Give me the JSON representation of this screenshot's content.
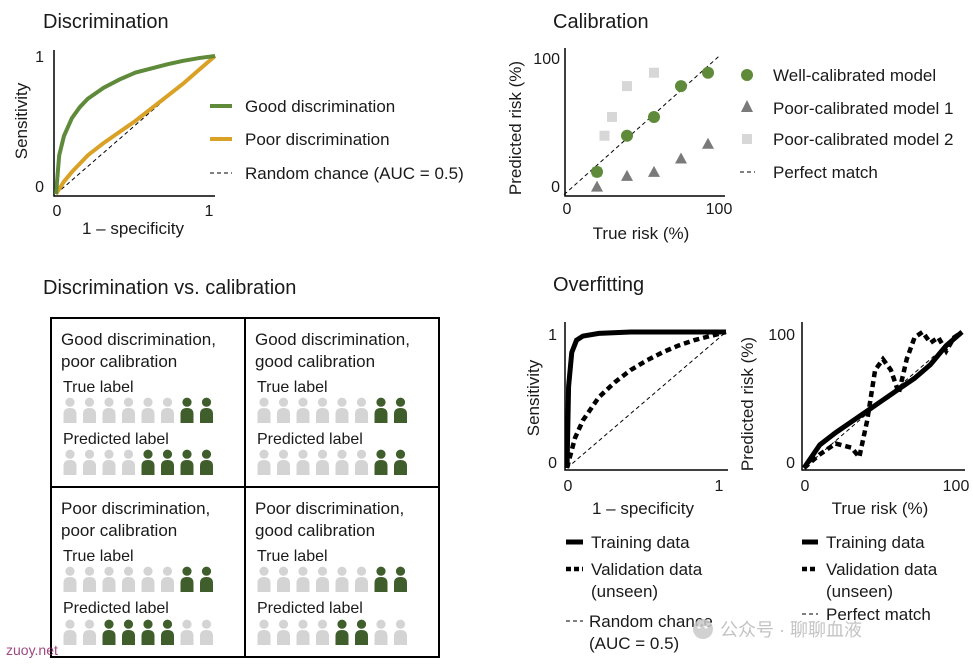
{
  "colors": {
    "green": "#5e8a3a",
    "gold": "#d9a227",
    "dark_green": "#3f5e2b",
    "gray_person": "#d4d4d4",
    "gray_marker": "#7a7a7a",
    "light_marker": "#d7d7d7"
  },
  "discrimination": {
    "title": "Discrimination",
    "xlabel": "1 – specificity",
    "ylabel": "Sensitivity",
    "x_ticks": [
      "0",
      "1"
    ],
    "y_ticks": [
      "0",
      "1"
    ],
    "legend": [
      "Good discrimination",
      "Poor discrimination",
      "Random chance (AUC = 0.5)"
    ]
  },
  "calibration": {
    "title": "Calibration",
    "xlabel": "True risk (%)",
    "ylabel": "Predicted risk (%)",
    "x_ticks": [
      "0",
      "100"
    ],
    "y_ticks": [
      "0",
      "100"
    ],
    "legend": [
      "Well-calibrated model",
      "Poor-calibrated model 1",
      "Poor-calibrated model 2",
      "Perfect match"
    ]
  },
  "chart_data": [
    {
      "type": "line",
      "title": "Discrimination",
      "xlabel": "1 – specificity",
      "ylabel": "Sensitivity",
      "xlim": [
        0,
        1
      ],
      "ylim": [
        0,
        1
      ],
      "series": [
        {
          "name": "Good discrimination",
          "x": [
            0,
            0.02,
            0.05,
            0.1,
            0.15,
            0.2,
            0.3,
            0.4,
            0.5,
            0.6,
            0.7,
            0.8,
            0.9,
            1
          ],
          "y": [
            0,
            0.28,
            0.42,
            0.55,
            0.63,
            0.69,
            0.77,
            0.83,
            0.88,
            0.91,
            0.94,
            0.965,
            0.985,
            1
          ]
        },
        {
          "name": "Poor discrimination",
          "x": [
            0,
            0.05,
            0.1,
            0.2,
            0.3,
            0.4,
            0.5,
            0.6,
            0.7,
            0.8,
            0.9,
            1
          ],
          "y": [
            0,
            0.09,
            0.16,
            0.28,
            0.37,
            0.45,
            0.53,
            0.62,
            0.71,
            0.8,
            0.9,
            1
          ]
        },
        {
          "name": "Random chance (AUC = 0.5)",
          "x": [
            0,
            1
          ],
          "y": [
            0,
            1
          ]
        }
      ]
    },
    {
      "type": "scatter",
      "title": "Calibration",
      "xlabel": "True risk (%)",
      "ylabel": "Predicted risk (%)",
      "xlim": [
        0,
        100
      ],
      "ylim": [
        0,
        100
      ],
      "series": [
        {
          "name": "Well-calibrated model",
          "x": [
            20,
            40,
            58,
            76,
            94
          ],
          "y": [
            15,
            42,
            56,
            79,
            89
          ]
        },
        {
          "name": "Poor-calibrated model 1",
          "x": [
            20,
            40,
            58,
            76,
            94
          ],
          "y": [
            4,
            12,
            15,
            25,
            36
          ]
        },
        {
          "name": "Poor-calibrated model 2",
          "x": [
            20,
            25,
            30,
            40,
            58
          ],
          "y": [
            15,
            42,
            56,
            79,
            89
          ]
        },
        {
          "name": "Perfect match",
          "x": [
            0,
            100
          ],
          "y": [
            0,
            100
          ]
        }
      ]
    },
    {
      "type": "line",
      "title": "Overfitting",
      "xlabel": "1 – specificity",
      "ylabel": "Sensitivity",
      "xlim": [
        0,
        1
      ],
      "ylim": [
        0,
        1
      ],
      "series": [
        {
          "name": "Training data",
          "x": [
            0,
            0.01,
            0.03,
            0.06,
            0.1,
            0.2,
            0.4,
            0.7,
            1
          ],
          "y": [
            0,
            0.6,
            0.85,
            0.94,
            0.97,
            0.99,
            1,
            1,
            1
          ]
        },
        {
          "name": "Validation data (unseen)",
          "x": [
            0,
            0.05,
            0.1,
            0.2,
            0.3,
            0.4,
            0.5,
            0.6,
            0.7,
            0.8,
            0.9,
            1
          ],
          "y": [
            0,
            0.22,
            0.35,
            0.52,
            0.63,
            0.72,
            0.79,
            0.85,
            0.9,
            0.94,
            0.97,
            1
          ]
        },
        {
          "name": "Random chance (AUC = 0.5)",
          "x": [
            0,
            1
          ],
          "y": [
            0,
            1
          ]
        }
      ]
    },
    {
      "type": "line",
      "xlabel": "True risk (%)",
      "ylabel": "Predicted risk (%)",
      "xlim": [
        0,
        100
      ],
      "ylim": [
        0,
        100
      ],
      "series": [
        {
          "name": "Training data",
          "x": [
            0,
            10,
            20,
            30,
            40,
            50,
            60,
            70,
            80,
            90,
            100
          ],
          "y": [
            0,
            17,
            26,
            34,
            42,
            50,
            58,
            66,
            76,
            90,
            100
          ]
        },
        {
          "name": "Validation data (unseen)",
          "x": [
            0,
            10,
            20,
            30,
            35,
            40,
            45,
            50,
            55,
            60,
            65,
            70,
            75,
            80,
            85,
            90,
            95,
            100
          ],
          "y": [
            0,
            10,
            18,
            15,
            8,
            35,
            72,
            80,
            72,
            55,
            80,
            96,
            100,
            92,
            96,
            86,
            96,
            100
          ]
        },
        {
          "name": "Perfect match",
          "x": [
            0,
            100
          ],
          "y": [
            0,
            100
          ]
        }
      ]
    }
  ],
  "dvc": {
    "title": "Discrimination vs. calibration",
    "true_label": "True label",
    "predicted_label": "Predicted label",
    "cells": [
      {
        "title_l1": "Good discrimination,",
        "title_l2": "poor calibration",
        "true_green": [
          6,
          7
        ],
        "pred_green": [
          4,
          5,
          6,
          7
        ]
      },
      {
        "title_l1": "Good discrimination,",
        "title_l2": "good calibration",
        "true_green": [
          6,
          7
        ],
        "pred_green": [
          6,
          7
        ]
      },
      {
        "title_l1": "Poor discrimination,",
        "title_l2": "poor calibration",
        "true_green": [
          6,
          7
        ],
        "pred_green": [
          2,
          3,
          4,
          5
        ]
      },
      {
        "title_l1": "Poor discrimination,",
        "title_l2": "good calibration",
        "true_green": [
          6,
          7
        ],
        "pred_green": [
          4,
          5
        ]
      }
    ]
  },
  "overfitting": {
    "title": "Overfitting",
    "roc": {
      "xlabel": "1 – specificity",
      "ylabel": "Sensitivity",
      "x_ticks": [
        "0",
        "1"
      ],
      "y_ticks": [
        "0",
        "1"
      ]
    },
    "cal": {
      "xlabel": "True risk (%)",
      "ylabel": "Predicted risk (%)",
      "x_ticks": [
        "0",
        "100"
      ],
      "y_ticks": [
        "0",
        "100"
      ]
    },
    "legend_left": {
      "training": "Training data",
      "validation_l1": "Validation data",
      "validation_l2": "(unseen)",
      "random_l1": "Random chance",
      "random_l2": "(AUC = 0.5)"
    },
    "legend_right": {
      "training": "Training data",
      "validation_l1": "Validation data",
      "validation_l2": "(unseen)",
      "perfect": "Perfect match"
    }
  },
  "watermark": {
    "text": "公众号 · 聊聊血液",
    "site": "zuoy.net"
  }
}
